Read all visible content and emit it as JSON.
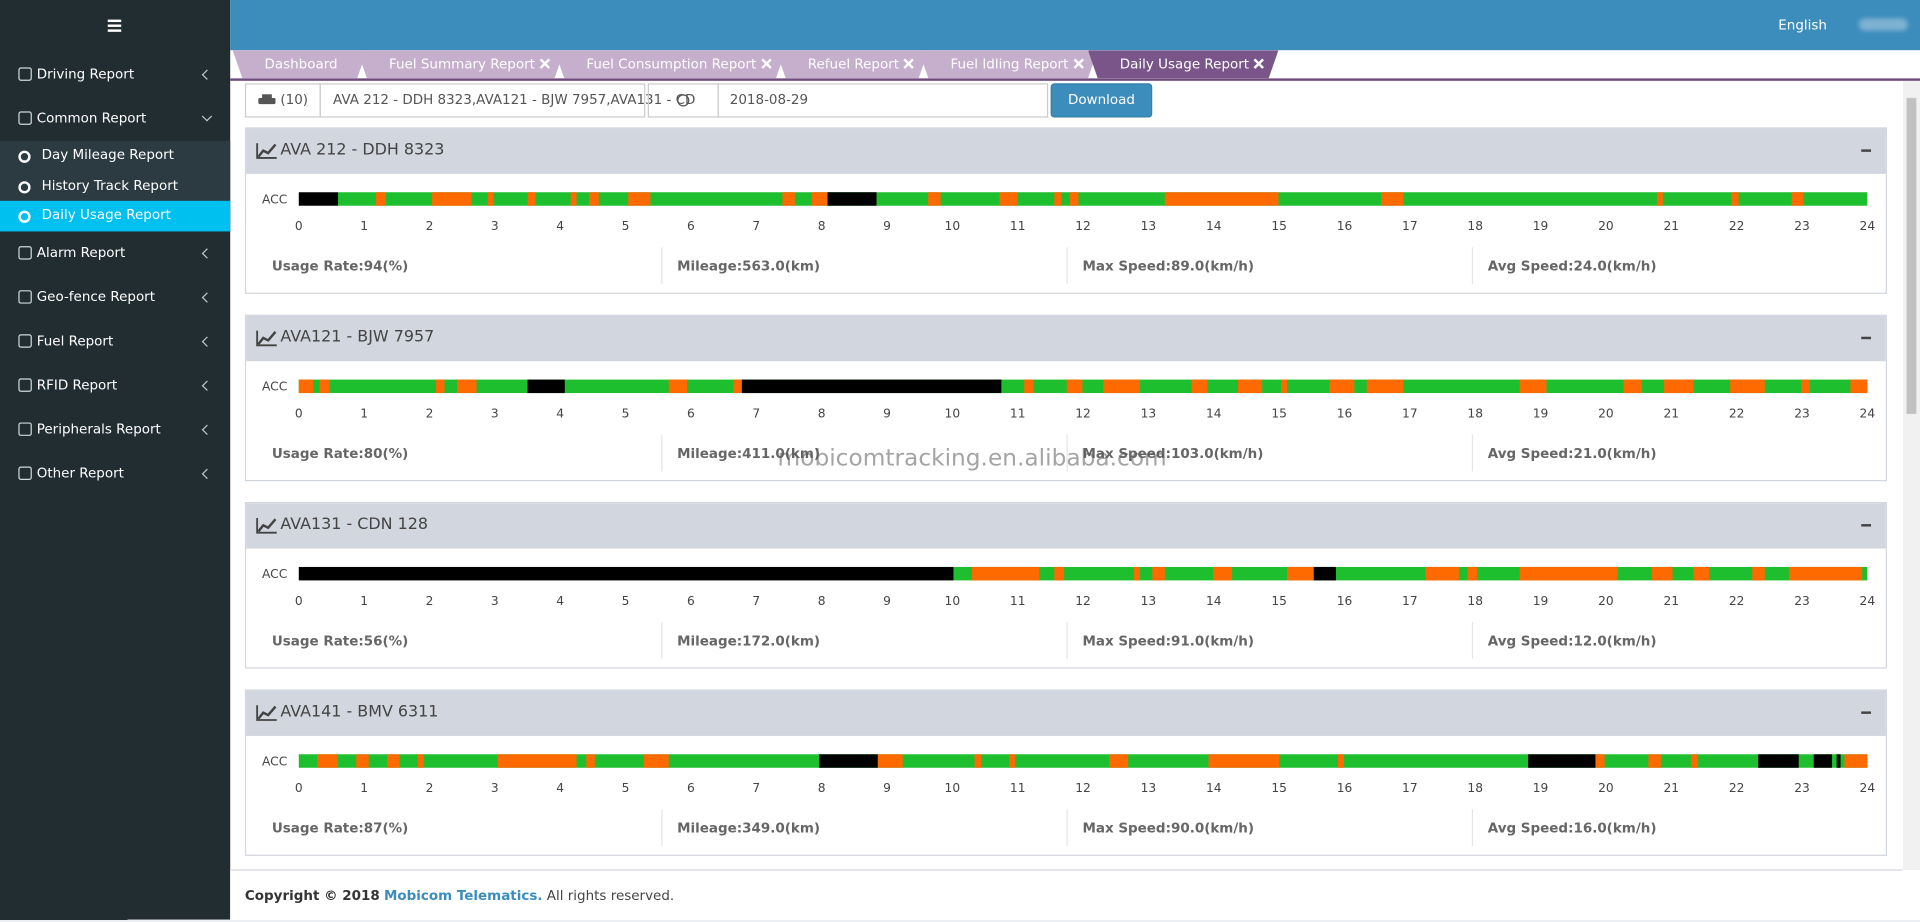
{
  "sidebar": {
    "menu": [
      {
        "label": "Driving Report"
      },
      {
        "label": "Common Report",
        "children": [
          "Day Mileage Report",
          "History Track Report",
          "Daily Usage Report"
        ],
        "active_child": 2
      },
      {
        "label": "Alarm Report"
      },
      {
        "label": "Geo-fence Report"
      },
      {
        "label": "Fuel Report"
      },
      {
        "label": "RFID Report"
      },
      {
        "label": "Peripherals Report"
      },
      {
        "label": "Other Report"
      }
    ]
  },
  "header": {
    "language": "English"
  },
  "tabs": [
    "Dashboard",
    "Fuel Summary Report",
    "Fuel Consumption Report",
    "Refuel Report",
    "Fuel Idling Report",
    "Daily Usage Report"
  ],
  "active_tab": 5,
  "filter": {
    "vehicle_count": "(10)",
    "vehicles": "AVA 212 - DDH 8323,AVA121 -  BJW 7957,AVA131 - CD",
    "date": "2018-08-29",
    "download": "Download"
  },
  "timeline": {
    "label": "ACC",
    "xlim": [
      0,
      24
    ],
    "ticks": [
      0,
      1,
      2,
      3,
      4,
      5,
      6,
      7,
      8,
      9,
      10,
      11,
      12,
      13,
      14,
      15,
      16,
      17,
      18,
      19,
      20,
      21,
      22,
      23,
      24
    ]
  },
  "vehicles": [
    {
      "name": "AVA 212 - DDH 8323",
      "stats": [
        "Usage Rate:94(%)",
        "Mileage:563.0(km)",
        "Max Speed:89.0(km/h)",
        "Avg Speed:24.0(km/h)"
      ],
      "segments": [
        {
          "start": 0,
          "end": 0.6,
          "color": "#000000"
        },
        {
          "start": 0.6,
          "end": 24,
          "color": "#1dbf2e"
        },
        {
          "start": 1.18,
          "end": 1.33,
          "color": "#ff6a00"
        },
        {
          "start": 2.04,
          "end": 2.64,
          "color": "#ff6a00"
        },
        {
          "start": 2.89,
          "end": 2.98,
          "color": "#ff6a00"
        },
        {
          "start": 3.5,
          "end": 3.62,
          "color": "#ff6a00"
        },
        {
          "start": 4.16,
          "end": 4.25,
          "color": "#ff6a00"
        },
        {
          "start": 4.44,
          "end": 4.59,
          "color": "#ff6a00"
        },
        {
          "start": 5.04,
          "end": 5.38,
          "color": "#ff6a00"
        },
        {
          "start": 7.4,
          "end": 7.59,
          "color": "#ff6a00"
        },
        {
          "start": 7.85,
          "end": 8.09,
          "color": "#ff6a00"
        },
        {
          "start": 8.09,
          "end": 8.84,
          "color": "#000000"
        },
        {
          "start": 9.63,
          "end": 9.82,
          "color": "#ff6a00"
        },
        {
          "start": 10.72,
          "end": 11.0,
          "color": "#ff6a00"
        },
        {
          "start": 11.56,
          "end": 11.67,
          "color": "#ff6a00"
        },
        {
          "start": 11.8,
          "end": 11.93,
          "color": "#ff6a00"
        },
        {
          "start": 13.25,
          "end": 14.99,
          "color": "#ff6a00"
        },
        {
          "start": 16.56,
          "end": 16.9,
          "color": "#ff6a00"
        },
        {
          "start": 20.78,
          "end": 20.87,
          "color": "#ff6a00"
        },
        {
          "start": 21.92,
          "end": 22.03,
          "color": "#ff6a00"
        },
        {
          "start": 22.84,
          "end": 23.02,
          "color": "#ff6a00"
        }
      ]
    },
    {
      "name": "AVA121 - BJW 7957",
      "stats": [
        "Usage Rate:80(%)",
        "Mileage:411.0(km)",
        "Max Speed:103.0(km/h)",
        "Avg Speed:21.0(km/h)"
      ],
      "segments": [
        {
          "start": 0,
          "end": 24,
          "color": "#1dbf2e"
        },
        {
          "start": 0,
          "end": 0.22,
          "color": "#ff6a00"
        },
        {
          "start": 0.32,
          "end": 0.47,
          "color": "#ff6a00"
        },
        {
          "start": 2.1,
          "end": 2.23,
          "color": "#ff6a00"
        },
        {
          "start": 2.42,
          "end": 2.72,
          "color": "#ff6a00"
        },
        {
          "start": 3.5,
          "end": 4.07,
          "color": "#000000"
        },
        {
          "start": 5.66,
          "end": 5.94,
          "color": "#ff6a00"
        },
        {
          "start": 6.65,
          "end": 6.78,
          "color": "#ff6a00"
        },
        {
          "start": 6.78,
          "end": 10.75,
          "color": "#000000"
        },
        {
          "start": 11.1,
          "end": 11.24,
          "color": "#ff6a00"
        },
        {
          "start": 11.75,
          "end": 11.99,
          "color": "#ff6a00"
        },
        {
          "start": 12.31,
          "end": 12.87,
          "color": "#ff6a00"
        },
        {
          "start": 13.66,
          "end": 13.9,
          "color": "#ff6a00"
        },
        {
          "start": 14.37,
          "end": 14.74,
          "color": "#ff6a00"
        },
        {
          "start": 15.03,
          "end": 15.12,
          "color": "#ff6a00"
        },
        {
          "start": 15.77,
          "end": 16.15,
          "color": "#ff6a00"
        },
        {
          "start": 16.34,
          "end": 16.9,
          "color": "#ff6a00"
        },
        {
          "start": 18.68,
          "end": 19.09,
          "color": "#ff6a00"
        },
        {
          "start": 20.27,
          "end": 20.55,
          "color": "#ff6a00"
        },
        {
          "start": 20.89,
          "end": 21.34,
          "color": "#ff6a00"
        },
        {
          "start": 21.9,
          "end": 22.43,
          "color": "#ff6a00"
        },
        {
          "start": 22.99,
          "end": 23.12,
          "color": "#ff6a00"
        },
        {
          "start": 23.74,
          "end": 24,
          "color": "#ff6a00"
        }
      ]
    },
    {
      "name": "AVA131 - CDN 128",
      "stats": [
        "Usage Rate:56(%)",
        "Mileage:172.0(km)",
        "Max Speed:91.0(km/h)",
        "Avg Speed:12.0(km/h)"
      ],
      "segments": [
        {
          "start": 0,
          "end": 10.02,
          "color": "#000000"
        },
        {
          "start": 10.02,
          "end": 24,
          "color": "#1dbf2e"
        },
        {
          "start": 10.3,
          "end": 11.33,
          "color": "#ff6a00"
        },
        {
          "start": 11.56,
          "end": 11.71,
          "color": "#ff6a00"
        },
        {
          "start": 12.78,
          "end": 12.87,
          "color": "#ff6a00"
        },
        {
          "start": 13.06,
          "end": 13.25,
          "color": "#ff6a00"
        },
        {
          "start": 13.99,
          "end": 14.28,
          "color": "#ff6a00"
        },
        {
          "start": 15.12,
          "end": 15.53,
          "color": "#ff6a00"
        },
        {
          "start": 15.53,
          "end": 15.87,
          "color": "#000000"
        },
        {
          "start": 17.24,
          "end": 17.75,
          "color": "#ff6a00"
        },
        {
          "start": 17.88,
          "end": 18.03,
          "color": "#ff6a00"
        },
        {
          "start": 18.68,
          "end": 20.18,
          "color": "#ff6a00"
        },
        {
          "start": 20.7,
          "end": 21.02,
          "color": "#ff6a00"
        },
        {
          "start": 21.34,
          "end": 21.58,
          "color": "#ff6a00"
        },
        {
          "start": 22.24,
          "end": 22.43,
          "color": "#ff6a00"
        },
        {
          "start": 22.8,
          "end": 23.92,
          "color": "#ff6a00"
        }
      ]
    },
    {
      "name": "AVA141 - BMV 6311",
      "stats": [
        "Usage Rate:87(%)",
        "Mileage:349.0(km)",
        "Max Speed:90.0(km/h)",
        "Avg Speed:16.0(km/h)"
      ],
      "segments": [
        {
          "start": 0,
          "end": 24,
          "color": "#1dbf2e"
        },
        {
          "start": 0.28,
          "end": 0.6,
          "color": "#ff6a00"
        },
        {
          "start": 0.88,
          "end": 1.07,
          "color": "#ff6a00"
        },
        {
          "start": 1.35,
          "end": 1.54,
          "color": "#ff6a00"
        },
        {
          "start": 1.82,
          "end": 1.91,
          "color": "#ff6a00"
        },
        {
          "start": 3.04,
          "end": 4.25,
          "color": "#ff6a00"
        },
        {
          "start": 4.4,
          "end": 4.53,
          "color": "#ff6a00"
        },
        {
          "start": 5.28,
          "end": 5.66,
          "color": "#ff6a00"
        },
        {
          "start": 7.96,
          "end": 8.86,
          "color": "#000000"
        },
        {
          "start": 8.86,
          "end": 9.24,
          "color": "#ff6a00"
        },
        {
          "start": 10.34,
          "end": 10.44,
          "color": "#ff6a00"
        },
        {
          "start": 10.87,
          "end": 10.96,
          "color": "#ff6a00"
        },
        {
          "start": 12.4,
          "end": 12.69,
          "color": "#ff6a00"
        },
        {
          "start": 13.92,
          "end": 15.0,
          "color": "#ff6a00"
        },
        {
          "start": 15.9,
          "end": 15.99,
          "color": "#ff6a00"
        },
        {
          "start": 18.81,
          "end": 19.84,
          "color": "#000000"
        },
        {
          "start": 19.84,
          "end": 19.98,
          "color": "#ff6a00"
        },
        {
          "start": 20.65,
          "end": 20.84,
          "color": "#ff6a00"
        },
        {
          "start": 21.3,
          "end": 21.41,
          "color": "#ff6a00"
        },
        {
          "start": 22.33,
          "end": 22.95,
          "color": "#000000"
        },
        {
          "start": 23.18,
          "end": 23.46,
          "color": "#000000"
        },
        {
          "start": 23.53,
          "end": 23.59,
          "color": "#000000"
        },
        {
          "start": 23.65,
          "end": 24,
          "color": "#ff6a00"
        }
      ]
    }
  ],
  "watermark": "mobicomtracking.en.alibaba.com",
  "footer": {
    "copyright": "Copyright © 2018",
    "company": "Mobicom Telematics.",
    "rights": "All rights reserved."
  }
}
